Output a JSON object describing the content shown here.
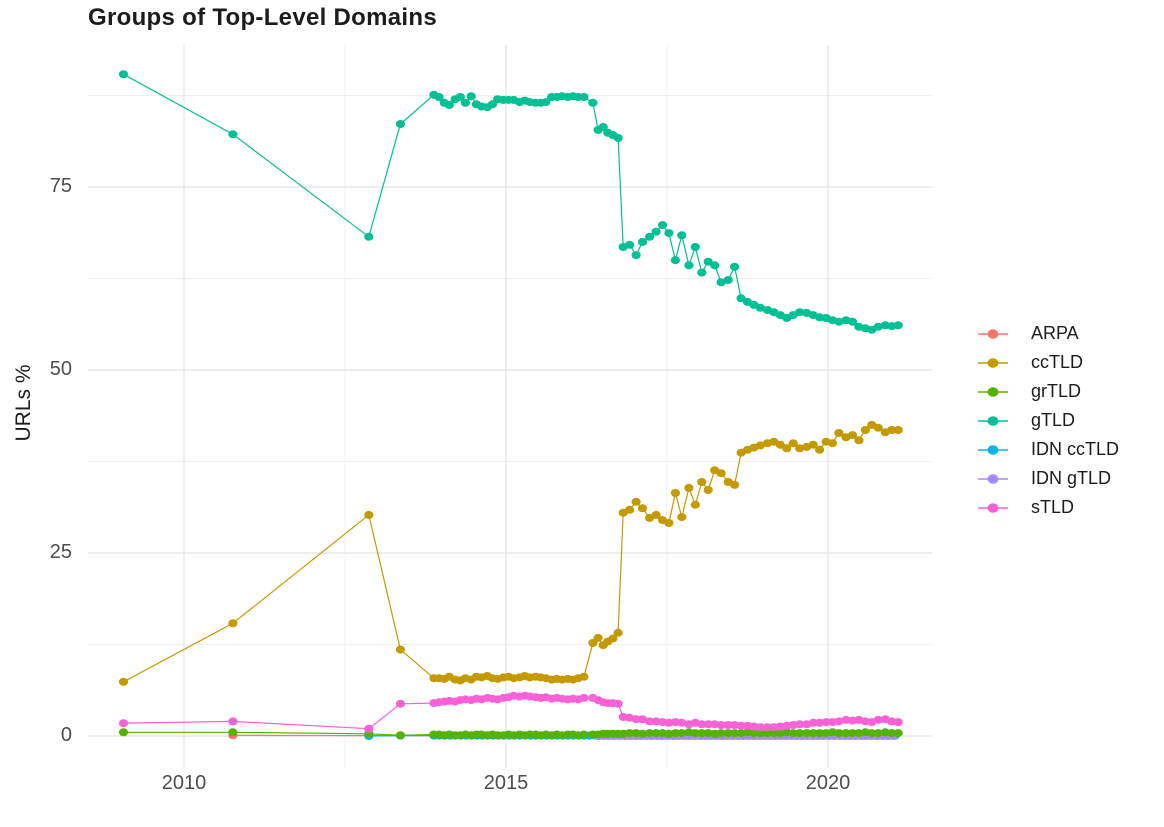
{
  "chart_data": {
    "type": "scatter-line",
    "title": "Groups of Top-Level Domains",
    "xlabel": "",
    "ylabel": "URLs %",
    "legend_position": "right",
    "background": "#FFFFFF",
    "grid": {
      "major_color": "#E3E3E3",
      "minor_color": "#F0F0F0"
    },
    "axes": {
      "x": {
        "ticks": [
          2010,
          2015,
          2020
        ],
        "tick_labels": [
          "2010",
          "2015",
          "2020"
        ],
        "minor_ticks": [
          2012.5,
          2017.5
        ],
        "range": [
          2008.5,
          2021.6
        ]
      },
      "y": {
        "title": "URLs %",
        "ticks": [
          0,
          25,
          50,
          75
        ],
        "tick_labels": [
          "0",
          "25",
          "50",
          "75"
        ],
        "minor_ticks": [
          12.5,
          37.5,
          62.5,
          87.5
        ],
        "range": [
          -4.4,
          94.4
        ]
      }
    },
    "x_pre": [
      2009.06,
      2010.76,
      2012.87,
      2013.36,
      2013.88
    ],
    "x_grid1": [
      2013.96,
      2014.04,
      2014.12,
      2014.21,
      2014.29,
      2014.37,
      2014.46,
      2014.54,
      2014.62,
      2014.71,
      2014.79,
      2014.87,
      2014.96,
      2015.04,
      2015.12,
      2015.21,
      2015.29,
      2015.37,
      2015.46,
      2015.54,
      2015.62,
      2015.71,
      2015.79,
      2015.87,
      2015.96,
      2016.04,
      2016.12,
      2016.21
    ],
    "x_hook": [
      2016.35,
      2016.43,
      2016.51,
      2016.58,
      2016.66,
      2016.74
    ],
    "x_grid2": [
      2016.82,
      2016.92,
      2017.02,
      2017.12,
      2017.23,
      2017.33,
      2017.43,
      2017.53,
      2017.63,
      2017.73,
      2017.84,
      2017.94,
      2018.04,
      2018.14,
      2018.24,
      2018.34,
      2018.45,
      2018.55,
      2018.65,
      2018.75,
      2018.85,
      2018.95,
      2019.06,
      2019.16,
      2019.26,
      2019.36,
      2019.46,
      2019.56,
      2019.67,
      2019.77,
      2019.87,
      2019.97,
      2020.07,
      2020.17,
      2020.28,
      2020.38,
      2020.48,
      2020.58,
      2020.68,
      2020.78,
      2020.89,
      2020.99,
      2021.09
    ],
    "series": [
      {
        "name": "ARPA",
        "label": "ARPA",
        "color": "#F8766D",
        "points_x": [
          2010.76,
          2012.87
        ],
        "points_y": [
          0.1,
          0.05
        ],
        "flat_run": {
          "from": 2013.88,
          "to": 2021.09,
          "step": 0.0833,
          "value": 0.05
        }
      },
      {
        "name": "ccTLD",
        "label": "ccTLD",
        "color": "#C49A00",
        "pre_y": [
          7.4,
          15.4,
          30.2,
          11.8,
          7.9
        ],
        "grid1_y": [
          7.9,
          7.8,
          8.1,
          7.7,
          7.6,
          7.9,
          7.7,
          8.1,
          8.0,
          8.2,
          7.9,
          7.8,
          8.0,
          8.1,
          7.9,
          8.0,
          8.2,
          8.0,
          8.1,
          8.0,
          7.9,
          7.7,
          7.8,
          7.7,
          7.8,
          7.7,
          7.9,
          8.1
        ],
        "hook_y": [
          12.7,
          13.4,
          12.4,
          12.9,
          13.3,
          14.1
        ],
        "grid2_y": [
          30.5,
          30.9,
          32.0,
          31.1,
          29.8,
          30.2,
          29.5,
          29.1,
          33.2,
          29.9,
          33.9,
          31.6,
          34.7,
          33.6,
          36.3,
          35.9,
          34.7,
          34.3,
          38.7,
          39.1,
          39.4,
          39.7,
          40.0,
          40.2,
          39.8,
          39.3,
          40.0,
          39.3,
          39.5,
          39.8,
          39.1,
          40.2,
          40.0,
          41.4,
          40.8,
          41.1,
          40.4,
          41.8,
          42.5,
          42.1,
          41.5,
          41.8,
          41.8
        ]
      },
      {
        "name": "grTLD",
        "label": "grTLD",
        "color": "#53B400",
        "pre_y": [
          0.5,
          0.5,
          0.3,
          0.1,
          0.2
        ],
        "grid1_y": [
          0.2,
          0.1,
          0.2,
          0.1,
          0.1,
          0.2,
          0.1,
          0.2,
          0.2,
          0.1,
          0.2,
          0.1,
          0.1,
          0.2,
          0.1,
          0.2,
          0.1,
          0.2,
          0.2,
          0.1,
          0.2,
          0.1,
          0.2,
          0.1,
          0.2,
          0.2,
          0.1,
          0.2
        ],
        "hook_y": [
          0.2,
          0.2,
          0.3,
          0.3,
          0.3,
          0.3
        ],
        "grid2_y": [
          0.3,
          0.4,
          0.4,
          0.3,
          0.4,
          0.4,
          0.4,
          0.3,
          0.4,
          0.4,
          0.5,
          0.4,
          0.4,
          0.4,
          0.3,
          0.4,
          0.4,
          0.4,
          0.4,
          0.5,
          0.4,
          0.4,
          0.4,
          0.4,
          0.4,
          0.5,
          0.4,
          0.4,
          0.4,
          0.4,
          0.4,
          0.4,
          0.5,
          0.4,
          0.4,
          0.4,
          0.4,
          0.5,
          0.4,
          0.4,
          0.5,
          0.4,
          0.4
        ]
      },
      {
        "name": "gTLD",
        "label": "gTLD",
        "color": "#00C094",
        "pre_y": [
          90.4,
          82.2,
          68.2,
          83.6,
          87.6
        ],
        "grid1_y": [
          87.3,
          86.5,
          86.2,
          87.0,
          87.3,
          86.5,
          87.4,
          86.3,
          86.0,
          85.9,
          86.3,
          87.0,
          86.9,
          86.9,
          86.9,
          86.6,
          86.8,
          86.6,
          86.5,
          86.5,
          86.6,
          87.3,
          87.3,
          87.4,
          87.3,
          87.4,
          87.3,
          87.3
        ],
        "hook_y": [
          86.5,
          82.8,
          83.2,
          82.4,
          82.1,
          81.7
        ],
        "grid2_y": [
          66.8,
          67.1,
          65.7,
          67.5,
          68.2,
          68.9,
          69.8,
          68.7,
          65.0,
          68.4,
          64.3,
          66.8,
          63.3,
          64.8,
          64.3,
          62.0,
          62.3,
          64.1,
          59.8,
          59.3,
          58.9,
          58.5,
          58.2,
          57.9,
          57.5,
          57.1,
          57.5,
          57.9,
          57.8,
          57.5,
          57.2,
          57.1,
          56.8,
          56.6,
          56.8,
          56.6,
          55.9,
          55.7,
          55.5,
          55.9,
          56.1,
          56.0,
          56.1
        ]
      },
      {
        "name": "IDN ccTLD",
        "label": "IDN ccTLD",
        "color": "#00B6EB",
        "points_x": [
          2012.87,
          2013.36
        ],
        "points_y": [
          0.0,
          0.05
        ],
        "flat_run": {
          "from": 2013.88,
          "to": 2021.09,
          "step": 0.0833,
          "value": 0.05
        }
      },
      {
        "name": "IDN gTLD",
        "label": "IDN gTLD",
        "color": "#A58AFF",
        "flat_run": {
          "from": 2016.43,
          "to": 2021.09,
          "step": 0.0833,
          "value": 0.0
        }
      },
      {
        "name": "sTLD",
        "label": "sTLD",
        "color": "#FB61D7",
        "pre_y": [
          1.75,
          2.0,
          1.0,
          4.4,
          4.5
        ],
        "grid1_y": [
          4.6,
          4.7,
          4.8,
          4.7,
          4.9,
          5.0,
          4.9,
          5.1,
          5.0,
          5.2,
          5.1,
          5.0,
          5.2,
          5.3,
          5.5,
          5.4,
          5.5,
          5.4,
          5.3,
          5.2,
          5.3,
          5.1,
          5.2,
          5.1,
          5.0,
          5.1,
          5.0,
          5.2
        ],
        "hook_y": [
          5.2,
          4.9,
          4.6,
          4.5,
          4.5,
          4.4
        ],
        "grid2_y": [
          2.6,
          2.5,
          2.3,
          2.3,
          2.0,
          2.0,
          1.9,
          1.8,
          1.9,
          1.8,
          1.6,
          1.8,
          1.6,
          1.6,
          1.6,
          1.5,
          1.5,
          1.5,
          1.4,
          1.4,
          1.3,
          1.2,
          1.2,
          1.2,
          1.3,
          1.4,
          1.5,
          1.6,
          1.6,
          1.8,
          1.8,
          1.9,
          1.9,
          2.0,
          2.2,
          2.1,
          2.2,
          2.0,
          1.9,
          2.2,
          2.3,
          2.0,
          1.9
        ]
      }
    ]
  }
}
